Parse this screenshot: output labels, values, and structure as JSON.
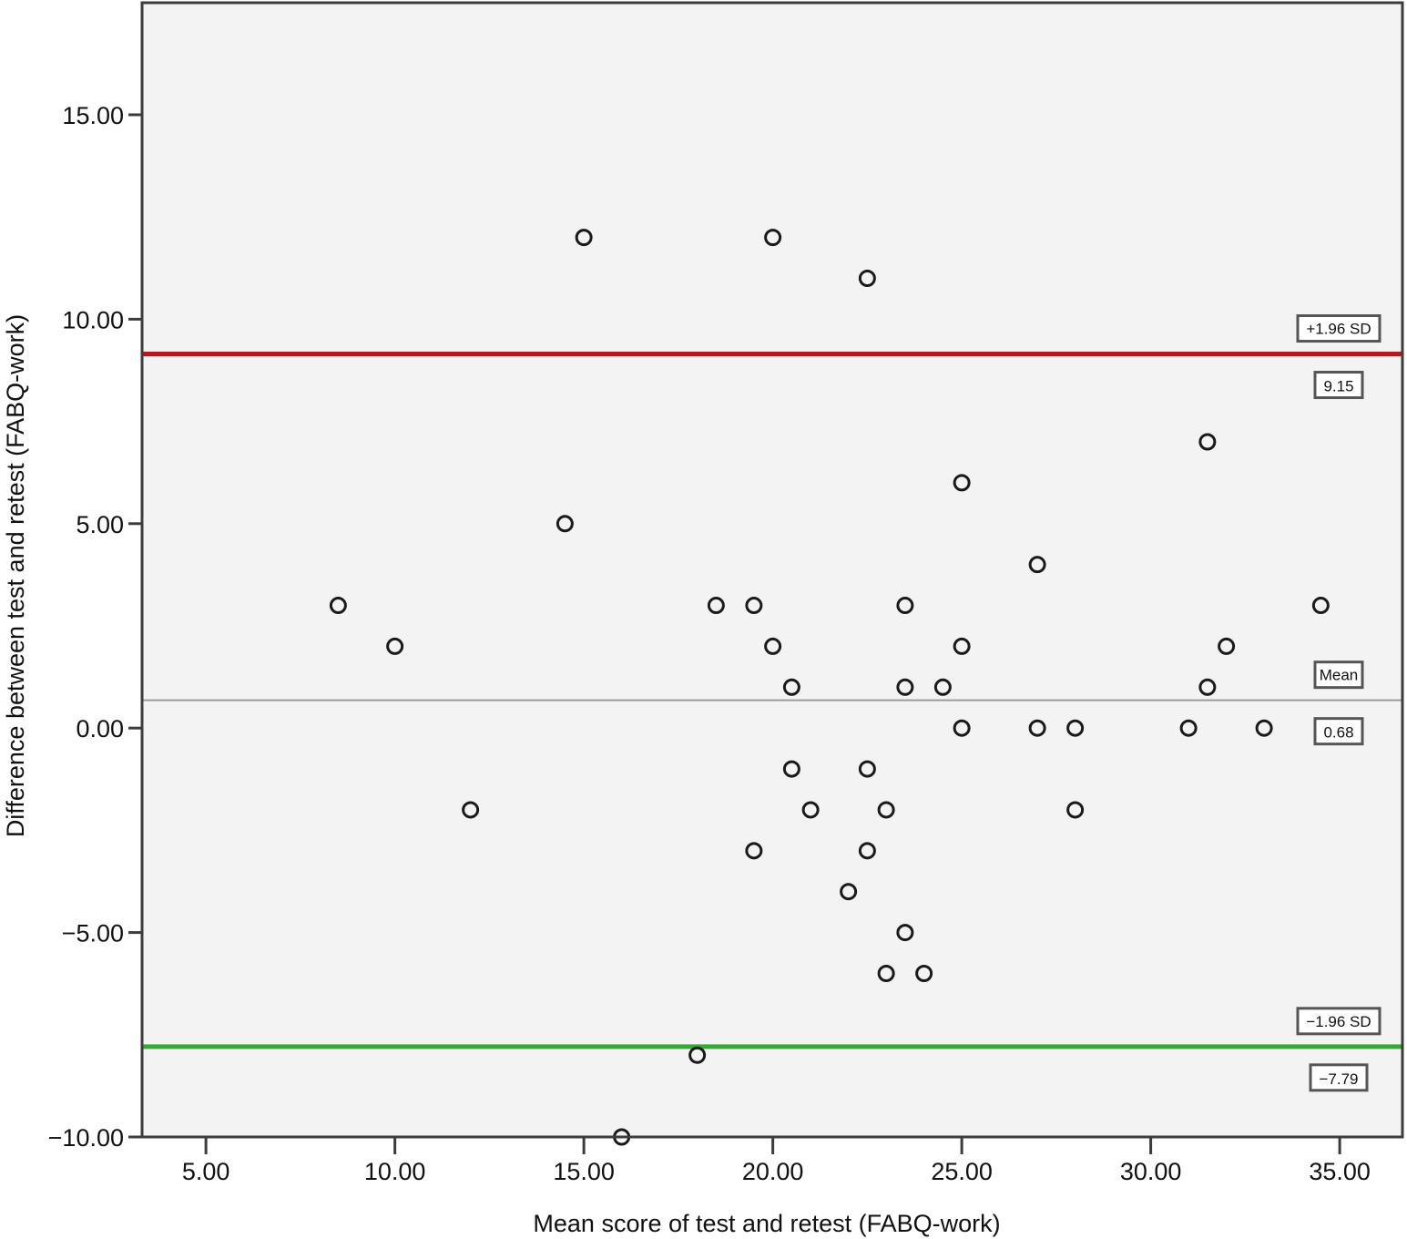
{
  "chart_data": {
    "type": "scatter",
    "title": "",
    "xlabel": "Mean score of test and retest (FABQ-work)",
    "ylabel": "Difference between test and retest (FABQ-work)",
    "xlim": [
      3.31,
      36.66
    ],
    "ylim": [
      -10.0,
      17.74
    ],
    "x_ticks": [
      5,
      10,
      15,
      20,
      25,
      30,
      35
    ],
    "x_tick_labels": [
      "5.00",
      "10.00",
      "15.00",
      "20.00",
      "25.00",
      "30.00",
      "35.00"
    ],
    "y_ticks": [
      -10,
      -5,
      0,
      5,
      10,
      15
    ],
    "y_tick_labels": [
      "−10.00",
      "−5.00",
      "0.00",
      "5.00",
      "10.00",
      "15.00"
    ],
    "grid": false,
    "legend": null,
    "background": "#f3f3f3",
    "marker": "open-circle",
    "points": [
      {
        "x": 8.5,
        "y": 3
      },
      {
        "x": 10,
        "y": 2
      },
      {
        "x": 12,
        "y": -2
      },
      {
        "x": 14.5,
        "y": 5
      },
      {
        "x": 15,
        "y": 12
      },
      {
        "x": 16,
        "y": -10
      },
      {
        "x": 18,
        "y": -8
      },
      {
        "x": 18.5,
        "y": 3
      },
      {
        "x": 19.5,
        "y": 3
      },
      {
        "x": 19.5,
        "y": -3
      },
      {
        "x": 20,
        "y": 12
      },
      {
        "x": 20,
        "y": 2
      },
      {
        "x": 20.5,
        "y": 1
      },
      {
        "x": 20.5,
        "y": -1
      },
      {
        "x": 21,
        "y": -2
      },
      {
        "x": 22,
        "y": -4
      },
      {
        "x": 22.5,
        "y": 11
      },
      {
        "x": 22.5,
        "y": -1
      },
      {
        "x": 22.5,
        "y": -3
      },
      {
        "x": 23,
        "y": -2
      },
      {
        "x": 23,
        "y": -6
      },
      {
        "x": 23.5,
        "y": 3
      },
      {
        "x": 23.5,
        "y": 1
      },
      {
        "x": 23.5,
        "y": -5
      },
      {
        "x": 24,
        "y": -6
      },
      {
        "x": 24.5,
        "y": 1
      },
      {
        "x": 25,
        "y": 6
      },
      {
        "x": 25,
        "y": 2
      },
      {
        "x": 25,
        "y": 0
      },
      {
        "x": 27,
        "y": 4
      },
      {
        "x": 27,
        "y": 0
      },
      {
        "x": 28,
        "y": 0
      },
      {
        "x": 28,
        "y": -2
      },
      {
        "x": 31,
        "y": 0
      },
      {
        "x": 31.5,
        "y": 7
      },
      {
        "x": 31.5,
        "y": 1
      },
      {
        "x": 32,
        "y": 2
      },
      {
        "x": 33,
        "y": 0
      },
      {
        "x": 34.5,
        "y": 3
      }
    ],
    "reference_lines": [
      {
        "name": "upper-limit",
        "y": 9.15,
        "color": "#b01c1c",
        "width": 5,
        "label": "+1.96 SD",
        "value_label": "9.15"
      },
      {
        "name": "mean",
        "y": 0.68,
        "color": "#9a9a9a",
        "width": 2,
        "label": "Mean",
        "value_label": "0.68"
      },
      {
        "name": "lower-limit",
        "y": -7.79,
        "color": "#36a936",
        "width": 5,
        "label": "−1.96 SD",
        "value_label": "−7.79"
      }
    ]
  }
}
